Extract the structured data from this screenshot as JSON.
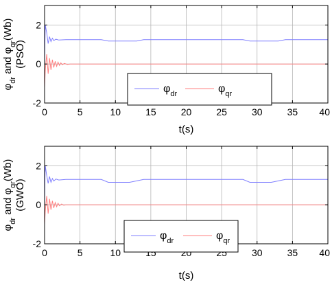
{
  "colors": {
    "phi_dr": "#7f7fff",
    "phi_qr": "#ff7f7f",
    "grid": "#b4b4b4",
    "axes": "#000000"
  },
  "chart_data": [
    {
      "type": "line",
      "title": "",
      "ylabel": {
        "main": "φ",
        "sub1": "dr",
        "mid": " and φ",
        "sub2": "qr",
        "unit": "(Wb)",
        "line2": "(PSO)"
      },
      "xlabel": "t(s)",
      "xlim": [
        0,
        40
      ],
      "ylim": [
        -2,
        3
      ],
      "xticks": [
        0,
        5,
        10,
        15,
        20,
        25,
        30,
        35,
        40
      ],
      "yticks": [
        -2,
        0,
        2
      ],
      "grid": true,
      "legend": {
        "placement": "lower-center",
        "entries": [
          {
            "main": "φ",
            "sub": "dr"
          },
          {
            "main": "φ",
            "sub": "qr"
          }
        ]
      },
      "series": [
        {
          "name": "φdr",
          "color": "#7f7fff",
          "points": [
            [
              0,
              0
            ],
            [
              0.05,
              1.2
            ],
            [
              0.1,
              2.0
            ],
            [
              0.3,
              1.6
            ],
            [
              0.5,
              1.05
            ],
            [
              0.7,
              1.4
            ],
            [
              0.9,
              1.15
            ],
            [
              1.1,
              1.32
            ],
            [
              1.3,
              1.2
            ],
            [
              1.6,
              1.27
            ],
            [
              2,
              1.23
            ],
            [
              3,
              1.25
            ],
            [
              8,
              1.25
            ],
            [
              9,
              1.18
            ],
            [
              13,
              1.18
            ],
            [
              14,
              1.25
            ],
            [
              28,
              1.25
            ],
            [
              29,
              1.18
            ],
            [
              33,
              1.18
            ],
            [
              34,
              1.25
            ],
            [
              40,
              1.25
            ]
          ]
        },
        {
          "name": "φqr",
          "color": "#ff7f7f",
          "points": [
            [
              0,
              -1.2
            ],
            [
              0.1,
              -0.3
            ],
            [
              0.3,
              0.5
            ],
            [
              0.5,
              -0.5
            ],
            [
              0.7,
              0.3
            ],
            [
              0.9,
              -0.3
            ],
            [
              1.1,
              0.22
            ],
            [
              1.3,
              -0.18
            ],
            [
              1.5,
              0.14
            ],
            [
              1.7,
              -0.12
            ],
            [
              1.9,
              0.1
            ],
            [
              2.1,
              -0.07
            ],
            [
              2.3,
              0.06
            ],
            [
              2.5,
              -0.04
            ],
            [
              2.8,
              0.03
            ],
            [
              3.2,
              -0.02
            ],
            [
              3.6,
              0
            ],
            [
              40,
              0
            ]
          ]
        }
      ]
    },
    {
      "type": "line",
      "title": "",
      "ylabel": {
        "main": "φ",
        "sub1": "dr",
        "mid": " and φ",
        "sub2": "qr",
        "unit": "(Wb)",
        "line2": "(GWO)"
      },
      "xlabel": "t(s)",
      "xlim": [
        0,
        40
      ],
      "ylim": [
        -2,
        3
      ],
      "xticks": [
        0,
        5,
        10,
        15,
        20,
        25,
        30,
        35,
        40
      ],
      "yticks": [
        -2,
        0,
        2
      ],
      "grid": true,
      "legend": {
        "placement": "lower-center",
        "entries": [
          {
            "main": "φ",
            "sub": "dr"
          },
          {
            "main": "φ",
            "sub": "qr"
          }
        ]
      },
      "series": [
        {
          "name": "φdr",
          "color": "#7f7fff",
          "points": [
            [
              0,
              0
            ],
            [
              0.05,
              1.4
            ],
            [
              0.1,
              2.0
            ],
            [
              0.3,
              1.5
            ],
            [
              0.5,
              1.1
            ],
            [
              0.7,
              1.45
            ],
            [
              0.9,
              1.15
            ],
            [
              1.1,
              1.35
            ],
            [
              1.3,
              1.22
            ],
            [
              1.6,
              1.32
            ],
            [
              2,
              1.27
            ],
            [
              3,
              1.3
            ],
            [
              8,
              1.3
            ],
            [
              9,
              1.15
            ],
            [
              12,
              1.15
            ],
            [
              14,
              1.3
            ],
            [
              28,
              1.3
            ],
            [
              29,
              1.15
            ],
            [
              32,
              1.15
            ],
            [
              34,
              1.3
            ],
            [
              40,
              1.3
            ]
          ]
        },
        {
          "name": "φqr",
          "color": "#ff7f7f",
          "points": [
            [
              0,
              -1.0
            ],
            [
              0.1,
              -0.3
            ],
            [
              0.3,
              0.45
            ],
            [
              0.5,
              -0.45
            ],
            [
              0.7,
              0.3
            ],
            [
              0.9,
              -0.25
            ],
            [
              1.1,
              0.2
            ],
            [
              1.3,
              -0.16
            ],
            [
              1.5,
              0.12
            ],
            [
              1.7,
              -0.1
            ],
            [
              1.9,
              0.08
            ],
            [
              2.1,
              -0.05
            ],
            [
              2.4,
              0.04
            ],
            [
              2.7,
              -0.02
            ],
            [
              3,
              0
            ],
            [
              40,
              0
            ]
          ]
        }
      ]
    }
  ]
}
